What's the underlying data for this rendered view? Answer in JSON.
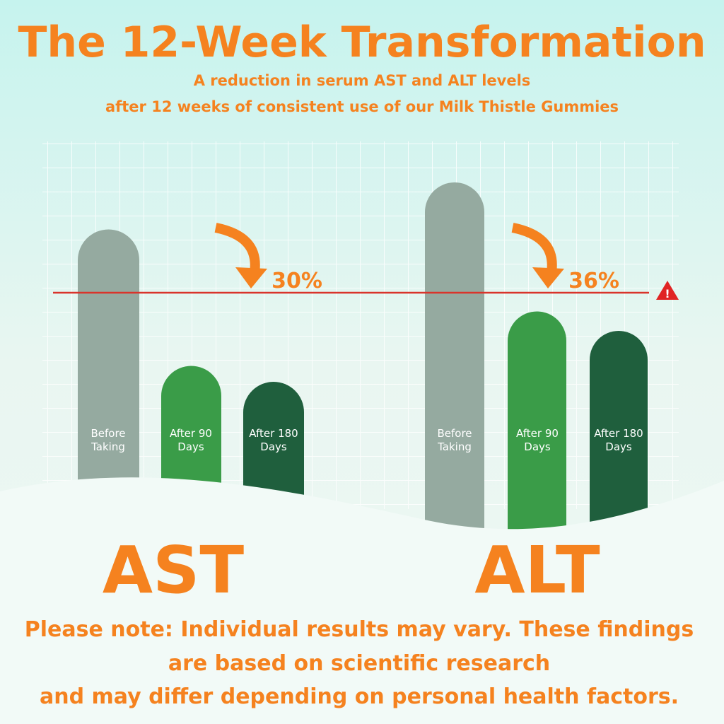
{
  "header": {
    "title": "The 12-Week Transformation",
    "subtitle": [
      "A reduction in serum AST and ALT levels",
      "after 12 weeks of consistent use of our Milk Thistle Gummies"
    ]
  },
  "panels": [
    {
      "name": "AST",
      "reduction": "30%",
      "bars": [
        [
          "Before",
          "Taking"
        ],
        [
          "After 90",
          "Days"
        ],
        [
          "After 180",
          "Days"
        ]
      ]
    },
    {
      "name": "ALT",
      "reduction": "36%",
      "bars": [
        [
          "Before",
          "Taking"
        ],
        [
          "After 90",
          "Days"
        ],
        [
          "After 180",
          "Days"
        ]
      ]
    }
  ],
  "note": [
    "Please note: Individual results may vary. These findings",
    "are based on scientific research",
    "and may differ depending on personal health factors."
  ]
}
